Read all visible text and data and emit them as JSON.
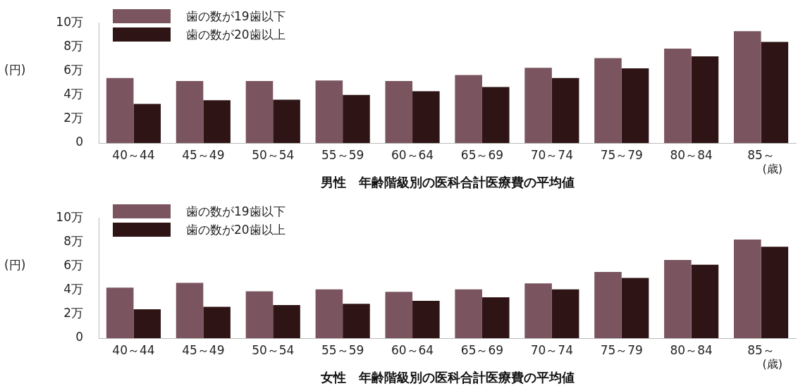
{
  "chart_data": [
    {
      "type": "bar",
      "xlabel": "男性　年齢階級別の医科合計医療費の平均値",
      "ylabel": "(円)",
      "categories": [
        "40～44",
        "45～49",
        "50～54",
        "55～59",
        "60～64",
        "65～69",
        "70～74",
        "75～79",
        "80～84",
        "85～"
      ],
      "series": [
        {
          "name": "歯の数が19歯以下",
          "color": "#7a5560",
          "values": [
            5.4,
            5.15,
            5.15,
            5.2,
            5.15,
            5.65,
            6.25,
            7.05,
            7.85,
            9.3
          ]
        },
        {
          "name": "歯の数が20歯以上",
          "color": "#2e1414",
          "values": [
            3.25,
            3.55,
            3.6,
            4.0,
            4.3,
            4.65,
            5.4,
            6.2,
            7.2,
            8.4
          ]
        }
      ],
      "ylim": [
        0,
        10
      ],
      "yticks": [
        0,
        {
          "value": 2,
          "label": "2万"
        },
        {
          "value": 4,
          "label": "4万"
        },
        {
          "value": 6,
          "label": "6万"
        },
        {
          "value": 8,
          "label": "8万"
        },
        {
          "value": 10,
          "label": "10万"
        }
      ],
      "legend": "top left",
      "annotations": [
        "(歳)"
      ]
    },
    {
      "type": "bar",
      "xlabel": "女性　年齢階級別の医科合計医療費の平均値",
      "ylabel": "(円)",
      "categories": [
        "40～44",
        "45～49",
        "50～54",
        "55～59",
        "60～64",
        "65～69",
        "70～74",
        "75～79",
        "80～84",
        "85～"
      ],
      "series": [
        {
          "name": "歯の数が19歯以下",
          "color": "#7a5560",
          "values": [
            4.2,
            4.6,
            3.9,
            4.05,
            3.85,
            4.05,
            4.55,
            5.5,
            6.5,
            8.2
          ]
        },
        {
          "name": "歯の数が20歯以上",
          "color": "#2e1414",
          "values": [
            2.4,
            2.6,
            2.75,
            2.85,
            3.1,
            3.4,
            4.05,
            5.0,
            6.1,
            7.6
          ]
        }
      ],
      "ylim": [
        0,
        10
      ],
      "yticks": [
        0,
        {
          "value": 2,
          "label": "2万"
        },
        {
          "value": 4,
          "label": "4万"
        },
        {
          "value": 6,
          "label": "6万"
        },
        {
          "value": 8,
          "label": "8万"
        },
        {
          "value": 10,
          "label": "10万"
        }
      ],
      "legend": "top left",
      "annotations": [
        "(歳)"
      ]
    }
  ]
}
